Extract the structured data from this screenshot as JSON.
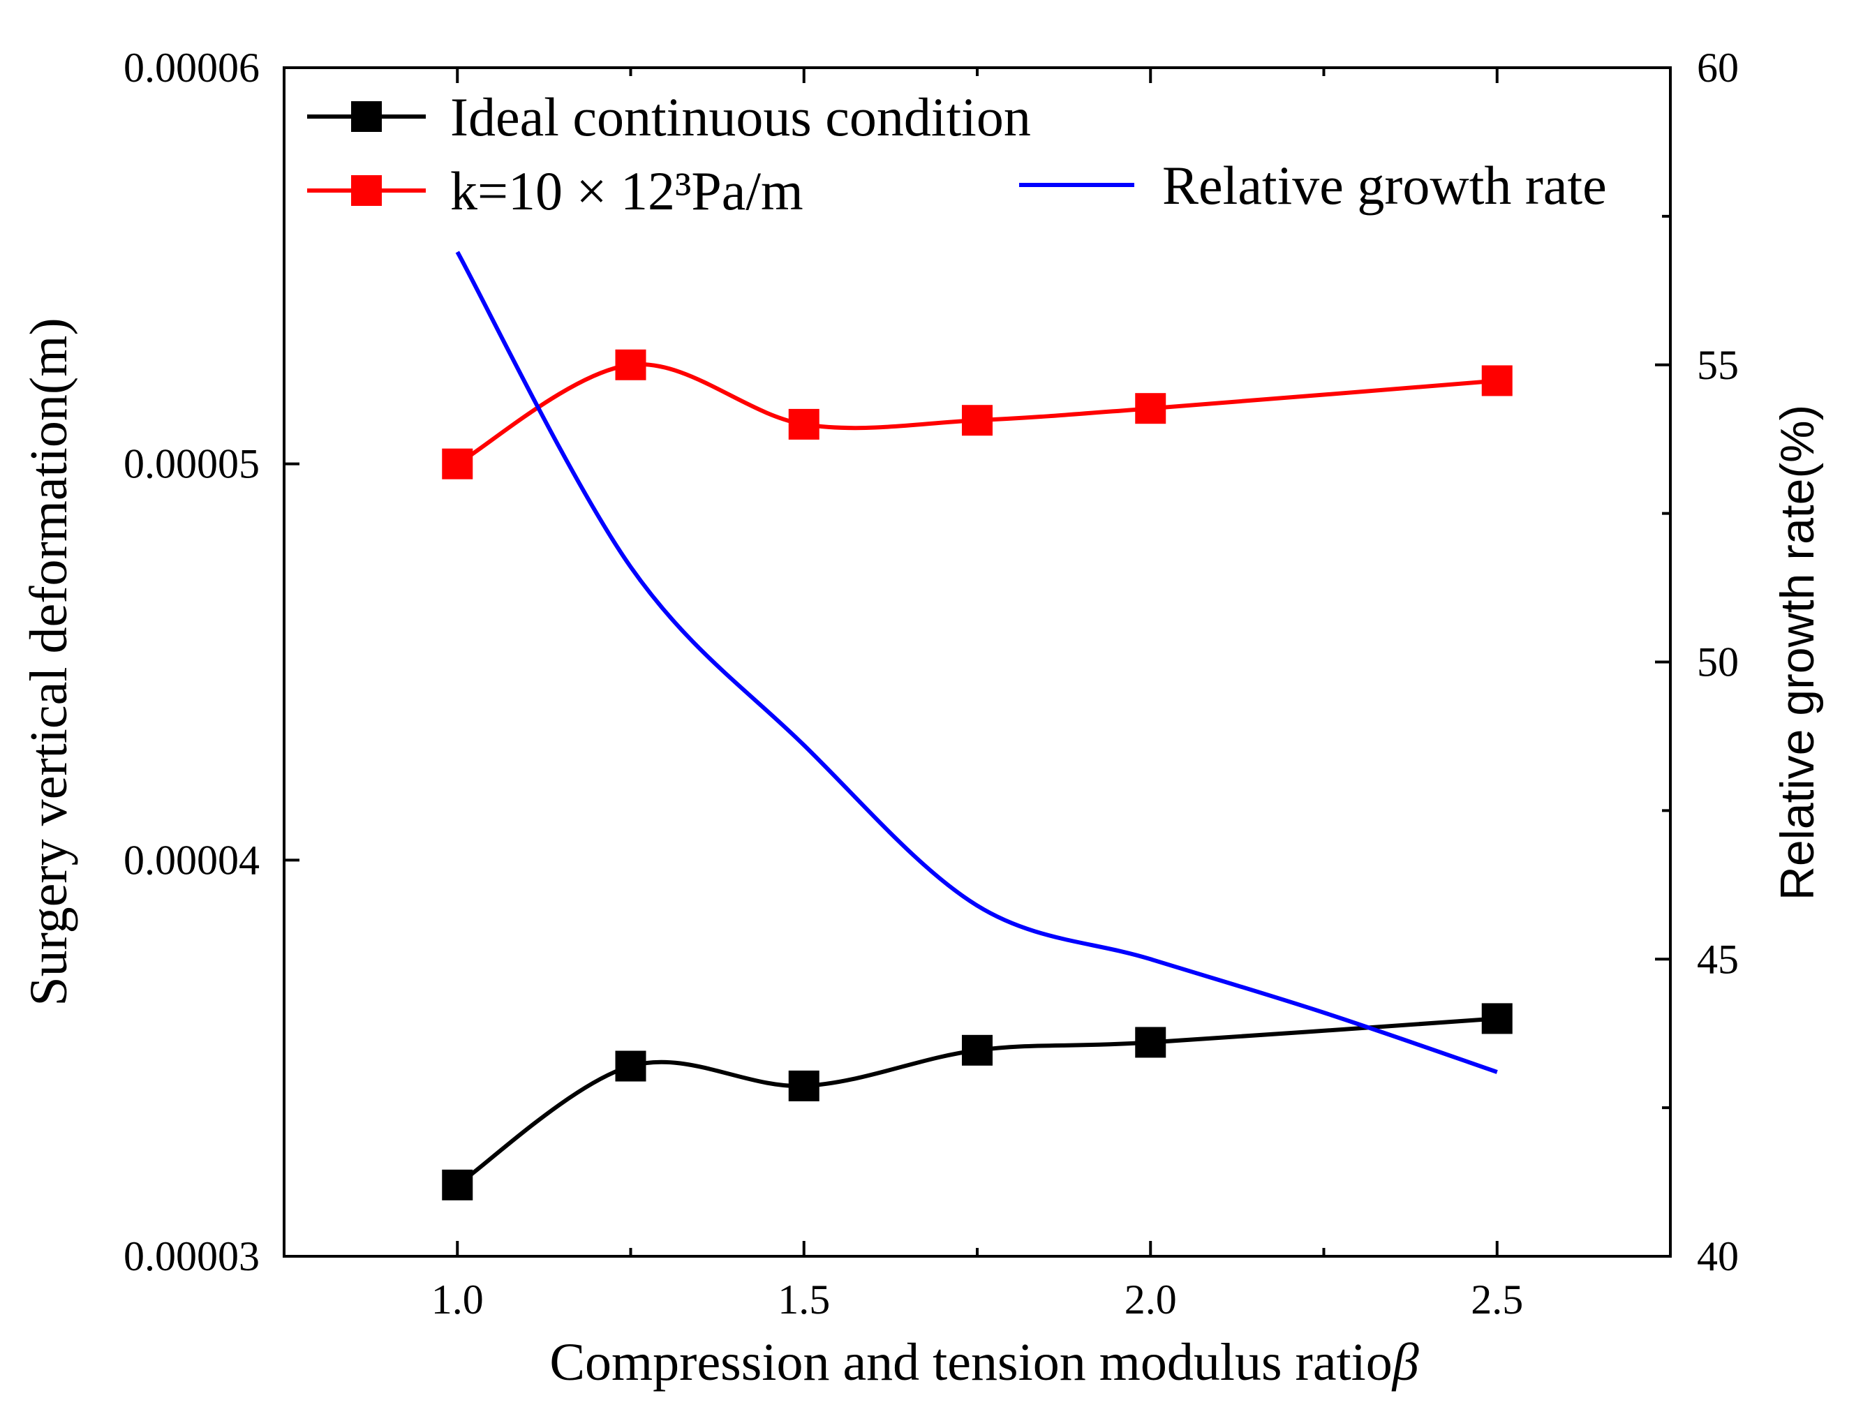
{
  "chart_data": {
    "type": "line",
    "x_axis": {
      "label": "Compression and tension modulus ratio",
      "label_symbol": "β",
      "range": [
        0.75,
        2.75
      ],
      "ticks": [
        1.0,
        1.5,
        2.0,
        2.5
      ],
      "tick_labels": [
        "1.0",
        "1.5",
        "2.0",
        "2.5"
      ],
      "minor_ticks": [
        1.25,
        1.75,
        2.25
      ]
    },
    "y_axis_left": {
      "label": "Surgery vertical deformation(m)",
      "range": [
        3e-05,
        6e-05
      ],
      "ticks": [
        3e-05,
        4e-05,
        5e-05,
        6e-05
      ],
      "tick_labels": [
        "0.00003",
        "0.00004",
        "0.00005",
        "0.00006"
      ]
    },
    "y_axis_right": {
      "label": "Relative growth rate(%)",
      "range": [
        40,
        60
      ],
      "ticks": [
        40,
        45,
        50,
        55,
        60
      ],
      "tick_labels": [
        "40",
        "45",
        "50",
        "55",
        "60"
      ],
      "minor_ticks": [
        42.5,
        47.5,
        52.5,
        57.5
      ]
    },
    "series": [
      {
        "name": "Ideal continuous condition",
        "axis": "left",
        "color": "#000000",
        "marker": "square",
        "x": [
          1.0,
          1.25,
          1.5,
          1.75,
          2.0,
          2.5
        ],
        "y": [
          3.18e-05,
          3.48e-05,
          3.43e-05,
          3.52e-05,
          3.54e-05,
          3.6e-05
        ]
      },
      {
        "name": "k=10 × 12³Pa/m",
        "axis": "left",
        "color": "#ff0000",
        "marker": "square",
        "x": [
          1.0,
          1.25,
          1.5,
          1.75,
          2.0,
          2.5
        ],
        "y": [
          5e-05,
          5.25e-05,
          5.1e-05,
          5.11e-05,
          5.14e-05,
          5.21e-05
        ]
      },
      {
        "name": "Relative growth rate",
        "axis": "right",
        "color": "#0000ff",
        "marker": "none",
        "x": [
          1.0,
          1.25,
          1.5,
          1.75,
          2.0,
          2.25,
          2.5
        ],
        "y": [
          56.9,
          51.6,
          48.6,
          45.9,
          45.0,
          44.1,
          43.1
        ]
      }
    ],
    "legend": {
      "entries": [
        "Ideal continuous condition",
        "k=10 × 12³Pa/m",
        "Relative growth rate"
      ],
      "placement": "top"
    },
    "grid": false
  }
}
